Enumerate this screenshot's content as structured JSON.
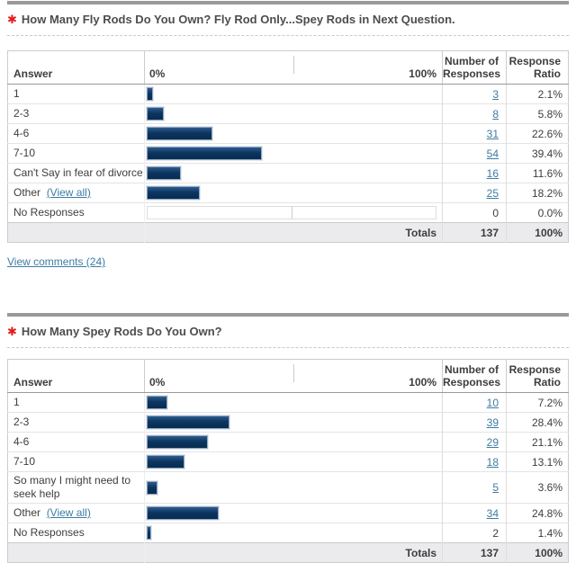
{
  "colors": {
    "bar_navy": "#0d3560",
    "bar_border": "#93a9c4",
    "link_blue": "#3d7ca3",
    "required_red": "#e31b1b",
    "totals_bg": "#ebebee",
    "rule_gray": "#999999"
  },
  "questions": [
    {
      "required_marker": "✱",
      "title": "How Many Fly Rods Do You Own? Fly Rod Only...Spey Rods in Next Question.",
      "comments_link": "View comments (24)",
      "table": {
        "header": {
          "answer": "Answer",
          "scale_min": "0%",
          "scale_max": "100%",
          "responses": "Number of Responses",
          "ratio": "Response Ratio"
        },
        "rows": [
          {
            "answer": "1",
            "responses": "3",
            "ratio": "2.1%",
            "ratio_value": 2.1
          },
          {
            "answer": "2-3",
            "responses": "8",
            "ratio": "5.8%",
            "ratio_value": 5.8
          },
          {
            "answer": "4-6",
            "responses": "31",
            "ratio": "22.6%",
            "ratio_value": 22.6
          },
          {
            "answer": "7-10",
            "responses": "54",
            "ratio": "39.4%",
            "ratio_value": 39.4
          },
          {
            "answer": "Can't Say in fear of divorce",
            "responses": "16",
            "ratio": "11.6%",
            "ratio_value": 11.6
          },
          {
            "answer": "Other",
            "answer_link": "(View all)",
            "responses": "25",
            "ratio": "18.2%",
            "ratio_value": 18.2
          },
          {
            "answer": "No Responses",
            "responses": "0",
            "ratio": "0.0%",
            "ratio_value": 0
          }
        ],
        "totals": {
          "label": "Totals",
          "responses": "137",
          "ratio": "100%"
        }
      }
    },
    {
      "required_marker": "✱",
      "title": "How Many Spey Rods Do You Own?",
      "table": {
        "header": {
          "answer": "Answer",
          "scale_min": "0%",
          "scale_max": "100%",
          "responses": "Number of Responses",
          "ratio": "Response Ratio"
        },
        "rows": [
          {
            "answer": "1",
            "responses": "10",
            "ratio": "7.2%",
            "ratio_value": 7.2
          },
          {
            "answer": "2-3",
            "responses": "39",
            "ratio": "28.4%",
            "ratio_value": 28.4
          },
          {
            "answer": "4-6",
            "responses": "29",
            "ratio": "21.1%",
            "ratio_value": 21.1
          },
          {
            "answer": "7-10",
            "responses": "18",
            "ratio": "13.1%",
            "ratio_value": 13.1
          },
          {
            "answer": "So many I might need to seek help",
            "responses": "5",
            "ratio": "3.6%",
            "ratio_value": 3.6
          },
          {
            "answer": "Other",
            "answer_link": "(View all)",
            "responses": "34",
            "ratio": "24.8%",
            "ratio_value": 24.8
          },
          {
            "answer": "No Responses",
            "responses": "2",
            "ratio": "1.4%",
            "ratio_value": 1.4
          }
        ],
        "totals": {
          "label": "Totals",
          "responses": "137",
          "ratio": "100%"
        }
      }
    }
  ],
  "chart_data": [
    {
      "type": "bar",
      "title": "How Many Fly Rods Do You Own? Fly Rod Only...Spey Rods in Next Question.",
      "categories": [
        "1",
        "2-3",
        "4-6",
        "7-10",
        "Can't Say in fear of divorce",
        "Other",
        "No Responses"
      ],
      "series": [
        {
          "name": "Number of Responses",
          "values": [
            3,
            8,
            31,
            54,
            16,
            25,
            0
          ]
        },
        {
          "name": "Response Ratio (%)",
          "values": [
            2.1,
            5.8,
            22.6,
            39.4,
            11.6,
            18.2,
            0.0
          ]
        }
      ],
      "total_responses": 137,
      "xlabel": "",
      "ylabel": "Response Ratio",
      "xlim_percent": [
        0,
        100
      ],
      "orientation": "horizontal"
    },
    {
      "type": "bar",
      "title": "How Many Spey Rods Do You Own?",
      "categories": [
        "1",
        "2-3",
        "4-6",
        "7-10",
        "So many I might need to seek help",
        "Other",
        "No Responses"
      ],
      "series": [
        {
          "name": "Number of Responses",
          "values": [
            10,
            39,
            29,
            18,
            5,
            34,
            2
          ]
        },
        {
          "name": "Response Ratio (%)",
          "values": [
            7.2,
            28.4,
            21.1,
            13.1,
            3.6,
            24.8,
            1.4
          ]
        }
      ],
      "total_responses": 137,
      "xlabel": "",
      "ylabel": "Response Ratio",
      "xlim_percent": [
        0,
        100
      ],
      "orientation": "horizontal"
    }
  ]
}
